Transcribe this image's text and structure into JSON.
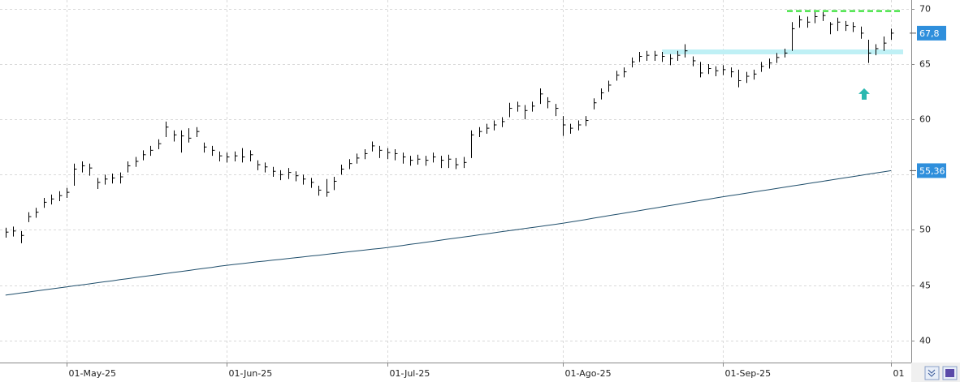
{
  "chart_data": {
    "type": "ohlc",
    "categories": [
      null,
      null,
      null,
      null,
      null,
      null,
      null,
      null,
      "01-May-25",
      null,
      null,
      null,
      null,
      null,
      null,
      null,
      null,
      null,
      null,
      null,
      null,
      null,
      null,
      null,
      null,
      null,
      null,
      null,
      null,
      "01-Jun-25",
      null,
      null,
      null,
      null,
      null,
      null,
      null,
      null,
      null,
      null,
      null,
      null,
      null,
      null,
      null,
      null,
      null,
      null,
      null,
      null,
      "01-Jul-25",
      null,
      null,
      null,
      null,
      null,
      null,
      null,
      null,
      null,
      null,
      null,
      null,
      null,
      null,
      null,
      null,
      null,
      null,
      null,
      null,
      null,
      null,
      "01-Ago-25",
      null,
      null,
      null,
      null,
      null,
      null,
      null,
      null,
      null,
      null,
      null,
      null,
      null,
      null,
      null,
      null,
      null,
      null,
      null,
      null,
      "01-Sep-25",
      null,
      null,
      null,
      null,
      null,
      null,
      null,
      null,
      null,
      null,
      null,
      null,
      null,
      null,
      null,
      null,
      null,
      null,
      null,
      null,
      null,
      "01"
    ],
    "high": [
      50.2,
      50.3,
      49.9,
      51.6,
      52.0,
      52.9,
      53.2,
      53.5,
      53.8,
      56.0,
      56.2,
      56.0,
      54.7,
      55.0,
      55.1,
      55.2,
      56.2,
      56.6,
      57.2,
      57.6,
      58.2,
      59.8,
      59.0,
      59.0,
      59.2,
      59.3,
      57.9,
      57.6,
      57.1,
      57.0,
      57.1,
      57.4,
      57.2,
      56.3,
      56.1,
      55.7,
      55.4,
      55.6,
      55.3,
      55.0,
      54.7,
      54.0,
      54.6,
      54.8,
      55.9,
      56.4,
      56.9,
      57.3,
      58.0,
      57.6,
      57.4,
      57.3,
      57.0,
      56.7,
      56.8,
      56.7,
      57.0,
      56.7,
      56.8,
      56.5,
      56.6,
      59.0,
      59.3,
      59.6,
      59.9,
      60.2,
      61.5,
      61.6,
      61.3,
      61.6,
      62.8,
      62.0,
      61.4,
      60.3,
      59.6,
      59.9,
      60.3,
      61.9,
      62.8,
      63.5,
      64.4,
      64.7,
      65.6,
      66.1,
      66.2,
      66.2,
      66.1,
      65.9,
      66.2,
      66.8,
      65.7,
      65.2,
      65.0,
      64.8,
      64.9,
      64.7,
      64.5,
      64.3,
      64.5,
      65.2,
      65.5,
      66.0,
      66.4,
      68.8,
      69.4,
      69.3,
      69.7,
      69.7,
      68.8,
      69.2,
      68.9,
      68.8,
      68.4,
      67.2,
      66.8,
      67.5,
      68.2
    ],
    "low": [
      49.3,
      49.4,
      48.8,
      50.7,
      51.1,
      52.0,
      52.3,
      52.6,
      52.9,
      54.0,
      55.2,
      54.9,
      53.7,
      54.1,
      54.2,
      54.2,
      55.2,
      55.7,
      56.3,
      56.7,
      57.3,
      58.4,
      58.0,
      57.0,
      57.9,
      58.4,
      57.0,
      56.7,
      56.2,
      56.1,
      56.2,
      56.1,
      56.2,
      55.4,
      55.2,
      54.8,
      54.5,
      54.6,
      54.4,
      54.1,
      53.8,
      53.1,
      53.0,
      53.6,
      55.0,
      55.5,
      56.0,
      56.4,
      57.1,
      56.5,
      56.4,
      56.3,
      56.0,
      55.8,
      55.9,
      55.8,
      56.1,
      55.6,
      55.6,
      55.5,
      55.6,
      56.5,
      58.4,
      58.7,
      59.0,
      59.3,
      60.2,
      60.7,
      60.0,
      60.7,
      61.4,
      61.0,
      60.3,
      58.5,
      58.7,
      59.0,
      59.4,
      60.9,
      61.8,
      62.5,
      63.5,
      63.8,
      64.7,
      65.2,
      65.3,
      65.3,
      65.2,
      64.9,
      65.3,
      65.6,
      64.8,
      63.8,
      64.1,
      63.9,
      64.0,
      63.8,
      62.9,
      63.3,
      63.6,
      64.3,
      64.6,
      65.1,
      65.6,
      66.2,
      68.3,
      68.3,
      68.7,
      68.9,
      67.7,
      68.0,
      68.0,
      67.9,
      67.3,
      65.1,
      65.8,
      66.2,
      67.2
    ],
    "close": [
      49.8,
      49.9,
      49.5,
      51.2,
      51.6,
      52.5,
      52.8,
      53.1,
      53.4,
      55.5,
      55.8,
      55.6,
      54.3,
      54.6,
      54.7,
      54.8,
      55.8,
      56.2,
      56.8,
      57.2,
      57.8,
      59.3,
      58.6,
      58.5,
      58.3,
      58.9,
      57.5,
      57.2,
      56.7,
      56.6,
      56.7,
      56.6,
      56.8,
      55.9,
      55.7,
      55.3,
      55.0,
      55.2,
      54.9,
      54.6,
      54.3,
      53.6,
      53.4,
      54.4,
      55.5,
      56.0,
      56.5,
      56.9,
      57.6,
      57.2,
      57.0,
      56.9,
      56.6,
      56.3,
      56.4,
      56.3,
      56.6,
      56.3,
      56.4,
      55.9,
      56.1,
      58.6,
      58.9,
      59.2,
      59.5,
      59.8,
      61.0,
      61.2,
      60.8,
      61.2,
      62.3,
      61.6,
      61.0,
      59.5,
      59.2,
      59.5,
      59.9,
      61.5,
      62.4,
      63.1,
      64.0,
      64.3,
      65.2,
      65.7,
      65.8,
      65.8,
      65.7,
      65.5,
      65.8,
      66.2,
      65.3,
      64.2,
      64.6,
      64.4,
      64.5,
      64.3,
      63.5,
      63.9,
      64.1,
      64.8,
      65.1,
      65.6,
      66.0,
      68.2,
      69.0,
      68.8,
      69.3,
      69.4,
      68.6,
      68.8,
      68.5,
      68.4,
      67.8,
      66.0,
      66.4,
      66.9,
      67.8
    ],
    "ma": [
      44.1,
      44.19,
      44.29,
      44.38,
      44.47,
      44.57,
      44.66,
      44.75,
      44.84,
      44.94,
      45.03,
      45.12,
      45.22,
      45.31,
      45.4,
      45.5,
      45.59,
      45.68,
      45.78,
      45.87,
      45.96,
      46.06,
      46.15,
      46.24,
      46.33,
      46.43,
      46.52,
      46.61,
      46.71,
      46.8,
      46.88,
      46.95,
      47.03,
      47.11,
      47.18,
      47.26,
      47.33,
      47.41,
      47.49,
      47.56,
      47.64,
      47.71,
      47.79,
      47.87,
      47.94,
      48.02,
      48.1,
      48.17,
      48.25,
      48.32,
      48.4,
      48.5,
      48.59,
      48.69,
      48.78,
      48.88,
      48.97,
      49.07,
      49.17,
      49.26,
      49.36,
      49.45,
      49.55,
      49.64,
      49.74,
      49.84,
      49.93,
      50.03,
      50.12,
      50.22,
      50.31,
      50.41,
      50.5,
      50.6,
      50.71,
      50.83,
      50.94,
      51.06,
      51.17,
      51.29,
      51.4,
      51.51,
      51.63,
      51.74,
      51.86,
      51.97,
      52.09,
      52.2,
      52.31,
      52.43,
      52.54,
      52.66,
      52.77,
      52.89,
      53.0,
      53.11,
      53.21,
      53.32,
      53.43,
      53.54,
      53.64,
      53.75,
      53.86,
      53.97,
      54.07,
      54.18,
      54.29,
      54.39,
      54.5,
      54.61,
      54.72,
      54.82,
      54.93,
      55.04,
      55.15,
      55.25,
      55.36
    ],
    "bar_color": "#000000",
    "ma_color": "#1f4e6b",
    "last_price": {
      "value": 67.8,
      "label": "67,8"
    },
    "ma_last": {
      "value": 55.36,
      "label": "55,36"
    },
    "resistance": 69.8,
    "resistance_color": "#22dd22",
    "support": 66.1,
    "support_color": "#bff0f5",
    "signal_arrow": 62.3,
    "arrow_color": "#2ab8b0",
    "ylim": [
      38.0,
      70.8
    ],
    "yticks": [
      40,
      45,
      50,
      55,
      60,
      65,
      70
    ],
    "grid": true
  }
}
